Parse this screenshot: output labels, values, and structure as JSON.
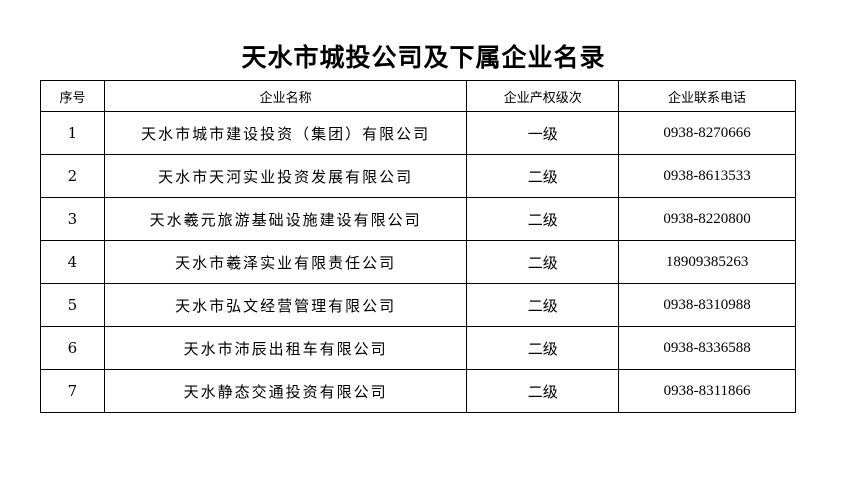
{
  "title": "天水市城投公司及下属企业名录",
  "headers": [
    "序号",
    "企业名称",
    "企业产权级次",
    "企业联系电话"
  ],
  "rows": [
    {
      "no": "1",
      "name": "天水市城市建设投资（集团）有限公司",
      "level": "一级",
      "phone": "0938-8270666"
    },
    {
      "no": "2",
      "name": "天水市天河实业投资发展有限公司",
      "level": "二级",
      "phone": "0938-8613533"
    },
    {
      "no": "3",
      "name": "天水羲元旅游基础设施建设有限公司",
      "level": "二级",
      "phone": "0938-8220800"
    },
    {
      "no": "4",
      "name": "天水市羲泽实业有限责任公司",
      "level": "二级",
      "phone": "18909385263"
    },
    {
      "no": "5",
      "name": "天水市弘文经营管理有限公司",
      "level": "二级",
      "phone": "0938-8310988"
    },
    {
      "no": "6",
      "name": "天水市沛辰出租车有限公司",
      "level": "二级",
      "phone": "0938-8336588"
    },
    {
      "no": "7",
      "name": "天水静态交通投资有限公司",
      "level": "二级",
      "phone": "0938-8311866"
    }
  ]
}
